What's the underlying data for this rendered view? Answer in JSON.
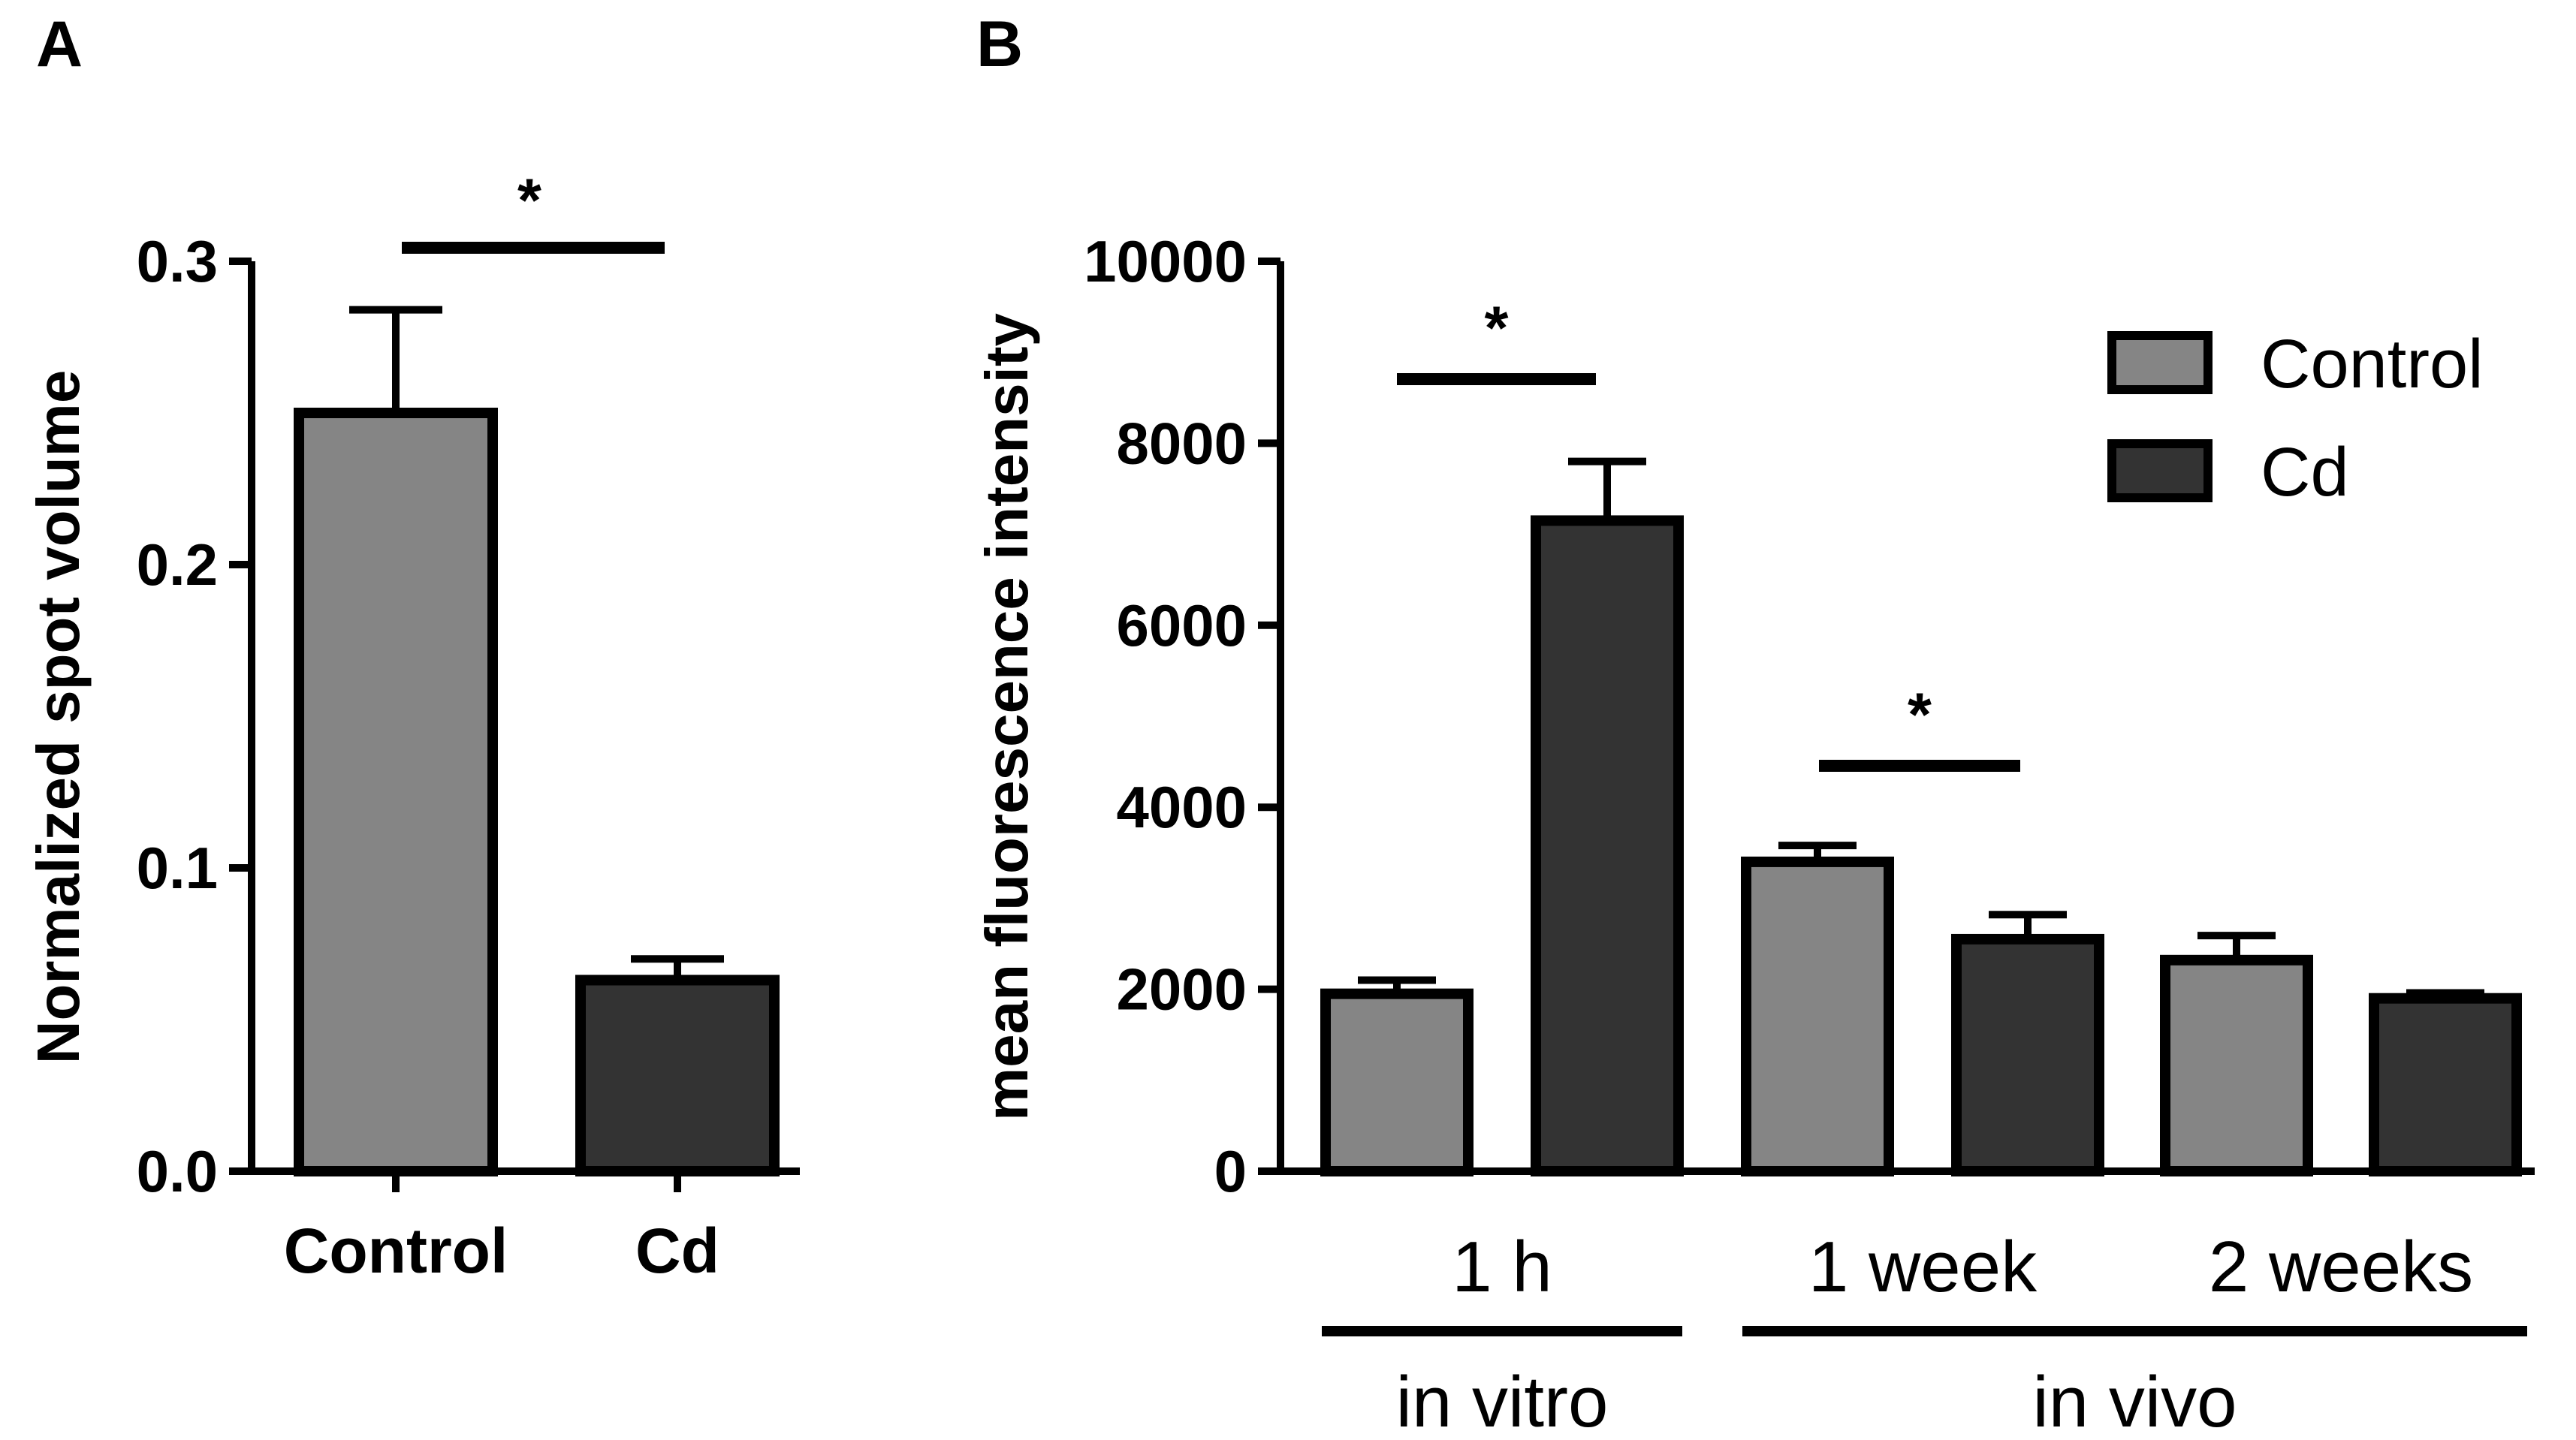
{
  "chart_data": [
    {
      "panel": "A",
      "type": "bar",
      "ylabel": "Normalized spot volume",
      "xlabel": "",
      "categories": [
        "Control",
        "Cd"
      ],
      "values": [
        0.25,
        0.063
      ],
      "errors": [
        0.034,
        0.007
      ],
      "colors": [
        "#858585",
        "#333333"
      ],
      "ylim": [
        0,
        0.3
      ],
      "yticks": [
        0.0,
        0.1,
        0.2,
        0.3
      ],
      "ytick_labels": [
        "0.0",
        "0.1",
        "0.2",
        "0.3"
      ],
      "significance": [
        {
          "between": [
            0,
            1
          ],
          "label": "*"
        }
      ]
    },
    {
      "panel": "B",
      "type": "bar",
      "ylabel": "mean fluorescence intensity",
      "xlabel": "",
      "categories": [
        "1 h",
        "1 week",
        "2 weeks"
      ],
      "groups": [
        {
          "label": "in vitro",
          "categories": [
            "1 h"
          ]
        },
        {
          "label": "in vivo",
          "categories": [
            "1 week",
            "2 weeks"
          ]
        }
      ],
      "series": [
        {
          "name": "Control",
          "color": "#858585",
          "values": [
            1950,
            3400,
            2320
          ],
          "errors": [
            150,
            180,
            270
          ]
        },
        {
          "name": "Cd",
          "color": "#333333",
          "values": [
            7150,
            2550,
            1900
          ],
          "errors": [
            650,
            270,
            60
          ]
        }
      ],
      "ylim": [
        0,
        10000
      ],
      "yticks": [
        0,
        2000,
        4000,
        6000,
        8000,
        10000
      ],
      "ytick_labels": [
        "0",
        "2000",
        "4000",
        "6000",
        "8000",
        "10000"
      ],
      "legend": {
        "position": "top-right",
        "entries": [
          "Control",
          "Cd"
        ]
      },
      "significance": [
        {
          "category": "1 h",
          "label": "*"
        },
        {
          "category": "1 week",
          "label": "*"
        }
      ]
    }
  ]
}
